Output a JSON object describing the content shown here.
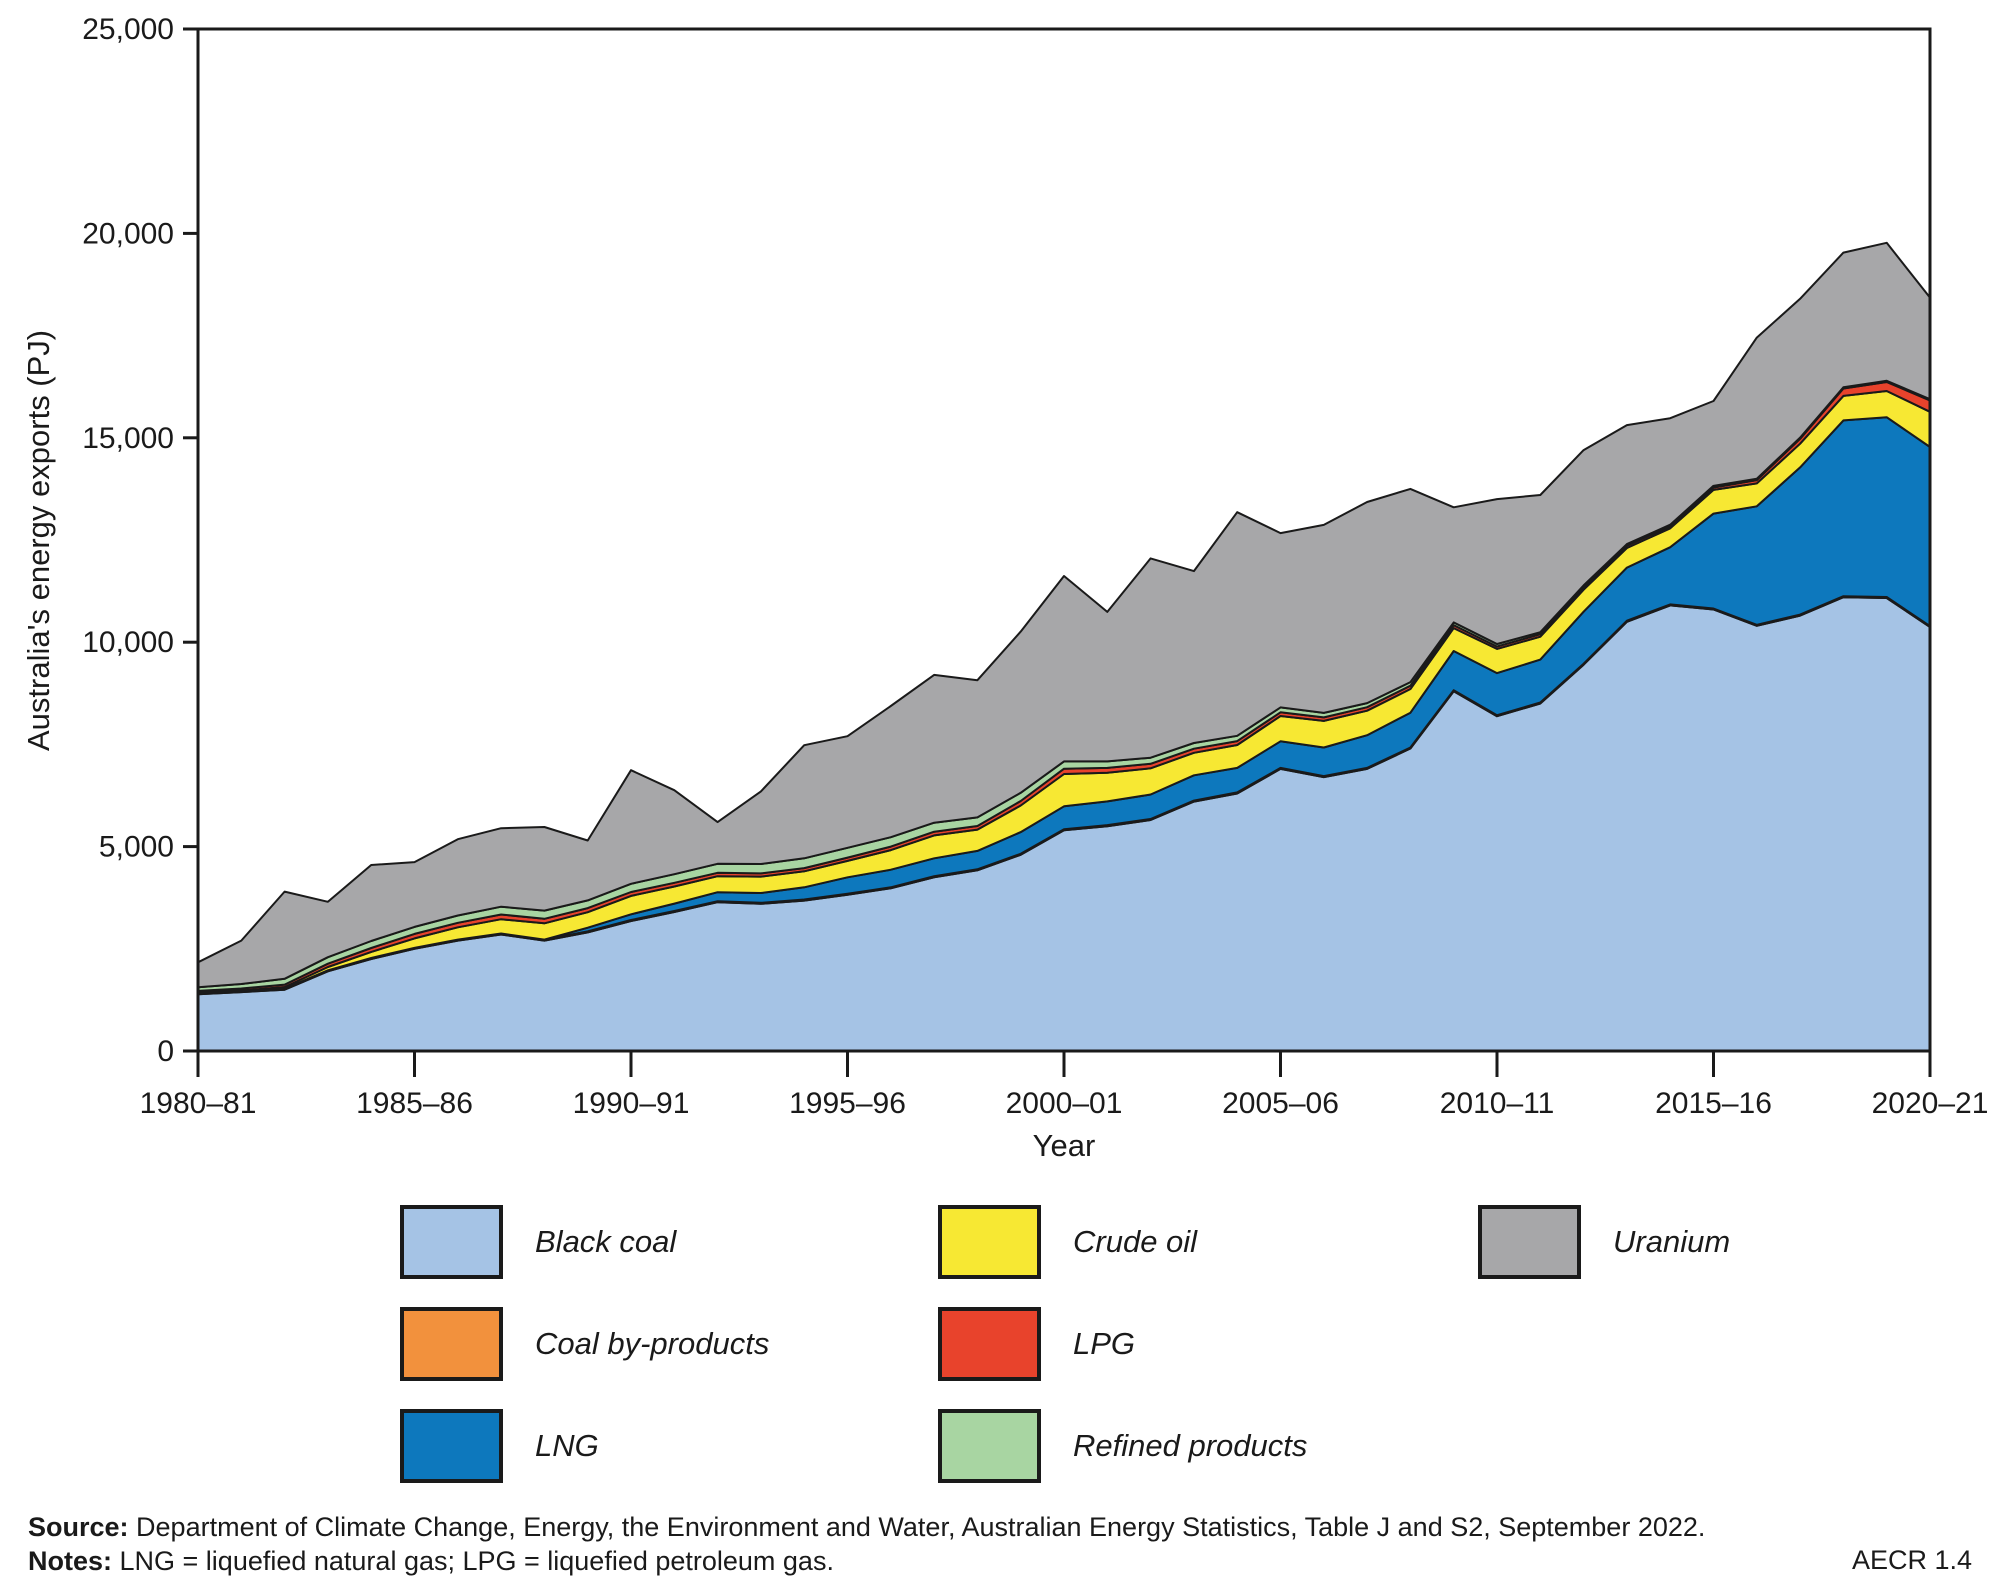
{
  "axes": {
    "y_title": "Australia's energy exports (PJ)",
    "x_title": "Year",
    "y_tick_labels": [
      "0",
      "5,000",
      "10,000",
      "15,000",
      "20,000",
      "25,000"
    ],
    "x_tick_labels": [
      "1980–81",
      "1985–86",
      "1990–91",
      "1995–96",
      "2000–01",
      "2005–06",
      "2010–11",
      "2015–16",
      "2020–21"
    ]
  },
  "chart_data": {
    "type": "area",
    "stacked": true,
    "title": "",
    "xlabel": "Year",
    "ylabel": "Australia's energy exports (PJ)",
    "ylim": [
      0,
      25000
    ],
    "grid": false,
    "legend_position": "bottom",
    "categories": [
      "1980–81",
      "1981–82",
      "1982–83",
      "1983–84",
      "1984–85",
      "1985–86",
      "1986–87",
      "1987–88",
      "1988–89",
      "1989–90",
      "1990–91",
      "1991–92",
      "1992–93",
      "1993–94",
      "1994–95",
      "1995–96",
      "1996–97",
      "1997–98",
      "1998–99",
      "1999–00",
      "2000–01",
      "2001–02",
      "2002–03",
      "2003–04",
      "2004–05",
      "2005–06",
      "2006–07",
      "2007–08",
      "2008–09",
      "2009–10",
      "2010–11",
      "2011–12",
      "2012–13",
      "2013–14",
      "2014–15",
      "2015–16",
      "2016–17",
      "2017–18",
      "2018–19",
      "2019–20",
      "2020–21"
    ],
    "units": "PJ",
    "series": [
      {
        "name": "Black coal",
        "color": "#a5c3e5",
        "values": [
          1390,
          1440,
          1500,
          1950,
          2250,
          2500,
          2700,
          2850,
          2700,
          2900,
          3180,
          3400,
          3640,
          3600,
          3680,
          3820,
          3980,
          4250,
          4420,
          4800,
          5400,
          5500,
          5650,
          6100,
          6300,
          6900,
          6700,
          6900,
          7400,
          8800,
          8190,
          8500,
          9450,
          10500,
          10900,
          10800,
          10400,
          10650,
          11100,
          11080,
          10370
        ]
      },
      {
        "name": "Coal by-products",
        "color": "#f2913d",
        "values": [
          25,
          25,
          25,
          25,
          25,
          25,
          25,
          25,
          25,
          25,
          25,
          25,
          25,
          25,
          25,
          25,
          25,
          25,
          25,
          25,
          25,
          25,
          25,
          25,
          25,
          25,
          25,
          25,
          25,
          25,
          25,
          25,
          25,
          25,
          25,
          25,
          25,
          25,
          25,
          25,
          25
        ]
      },
      {
        "name": "LNG",
        "color": "#0d78bd",
        "values": [
          0,
          0,
          0,
          0,
          0,
          0,
          0,
          0,
          0,
          90,
          140,
          180,
          220,
          240,
          300,
          405,
          430,
          440,
          450,
          530,
          560,
          580,
          600,
          620,
          600,
          650,
          700,
          800,
          850,
          960,
          1030,
          1050,
          1270,
          1300,
          1400,
          2320,
          2900,
          3600,
          4300,
          4400,
          4380
        ]
      },
      {
        "name": "Crude oil",
        "color": "#f7e833",
        "values": [
          10,
          15,
          40,
          80,
          150,
          230,
          300,
          350,
          400,
          380,
          450,
          420,
          390,
          400,
          390,
          400,
          480,
          560,
          520,
          650,
          790,
          700,
          640,
          550,
          560,
          620,
          650,
          600,
          580,
          560,
          590,
          560,
          540,
          480,
          460,
          580,
          560,
          580,
          600,
          640,
          860
        ]
      },
      {
        "name": "LPG",
        "color": "#e8432c",
        "values": [
          45,
          50,
          60,
          80,
          95,
          110,
          110,
          115,
          110,
          100,
          95,
          90,
          85,
          80,
          80,
          80,
          85,
          90,
          90,
          110,
          130,
          120,
          110,
          100,
          95,
          90,
          85,
          85,
          80,
          70,
          60,
          60,
          60,
          55,
          55,
          60,
          80,
          120,
          180,
          220,
          280
        ]
      },
      {
        "name": "Refined products",
        "color": "#a8d5a2",
        "values": [
          90,
          110,
          140,
          160,
          170,
          170,
          180,
          190,
          200,
          190,
          200,
          210,
          220,
          230,
          240,
          240,
          230,
          220,
          210,
          200,
          180,
          160,
          150,
          140,
          130,
          120,
          110,
          100,
          90,
          70,
          60,
          50,
          45,
          40,
          35,
          40,
          35,
          30,
          30,
          30,
          30
        ]
      },
      {
        "name": "Uranium",
        "color": "#a7a7a9",
        "values": [
          610,
          1060,
          2135,
          1355,
          1860,
          1585,
          1865,
          1920,
          2045,
          1465,
          2780,
          2055,
          1020,
          1775,
          2765,
          2730,
          3210,
          3615,
          3355,
          3945,
          4535,
          3655,
          4875,
          4205,
          5470,
          4265,
          4600,
          4920,
          4725,
          2815,
          3545,
          3355,
          3310,
          2910,
          2605,
          2075,
          3450,
          3395,
          3295,
          3375,
          2485
        ]
      }
    ]
  },
  "legend": {
    "items": [
      {
        "label": "Black coal",
        "color": "#a5c3e5"
      },
      {
        "label": "Crude oil",
        "color": "#f7e833"
      },
      {
        "label": "Uranium",
        "color": "#a7a7a9"
      },
      {
        "label": "Coal by-products",
        "color": "#f2913d"
      },
      {
        "label": "LPG",
        "color": "#e8432c"
      },
      {
        "label": "LNG",
        "color": "#0d78bd"
      },
      {
        "label": "Refined products",
        "color": "#a8d5a2"
      }
    ]
  },
  "footer": {
    "source_label": "Source:",
    "source_text": " Department of Climate Change, Energy, the Environment and Water, Australian Energy Statistics, Table J and S2, September 2022.",
    "notes_label": "Notes:",
    "notes_text": " LNG = liquefied natural gas; LPG = liquefied petroleum gas.",
    "code": "AECR 1.4"
  }
}
